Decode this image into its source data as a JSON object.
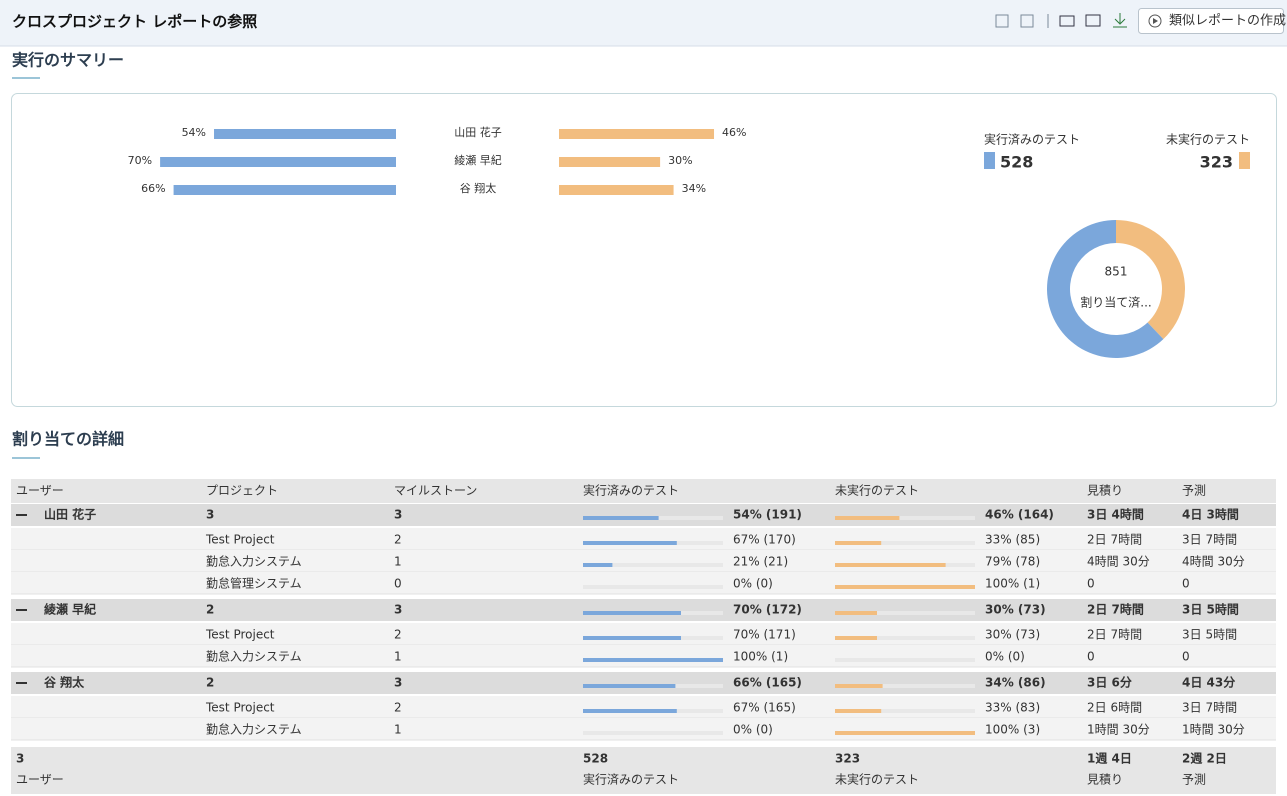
{
  "header": {
    "title": "クロスプロジェクト レポートの参照",
    "button": "類似レポートの作成"
  },
  "summary": {
    "title": "実行のサマリー",
    "users": [
      "山田 花子",
      "綾瀬 早紀",
      "谷 翔太"
    ],
    "executed": {
      "values": [
        54,
        70,
        66
      ],
      "value_labels": [
        "54%",
        "70%",
        "66%"
      ],
      "color": "#7ba7db"
    },
    "unexecuted": {
      "values": [
        46,
        30,
        34
      ],
      "value_labels": [
        "46%",
        "30%",
        "34%"
      ],
      "color": "#f2bd7f"
    },
    "legend": [
      {
        "name": "実行済みのテスト",
        "value": 528,
        "color": "#7ba7db"
      },
      {
        "name": "未実行のテスト",
        "value": 323,
        "color": "#f2bd7f"
      }
    ],
    "donut": {
      "total": 851,
      "label": "割り当て済..."
    }
  },
  "details": {
    "title": "割り当ての詳細",
    "columns": [
      "ユーザー",
      "プロジェクト",
      "マイルストーン",
      "実行済みのテスト",
      "未実行のテスト",
      "見積り",
      "予測"
    ],
    "groups": [
      {
        "user": "山田 花子",
        "projects": 3,
        "milestones": 3,
        "executed": {
          "label": "54% (191)",
          "value": 54
        },
        "unexecuted": {
          "label": "46% (164)",
          "value": 46
        },
        "estimate": "3日 4時間",
        "forecast": "4日 3時間",
        "rows": [
          {
            "project": "Test Project",
            "milestones": 2,
            "executed": {
              "label": "67% (170)",
              "value": 67
            },
            "unexecuted": {
              "label": "33% (85)",
              "value": 33
            },
            "estimate": "2日 7時間",
            "forecast": "3日 7時間"
          },
          {
            "project": "勤怠入力システム",
            "milestones": 1,
            "executed": {
              "label": "21% (21)",
              "value": 21
            },
            "unexecuted": {
              "label": "79% (78)",
              "value": 79
            },
            "estimate": "4時間 30分",
            "forecast": "4時間 30分"
          },
          {
            "project": "勤怠管理システム",
            "milestones": 0,
            "executed": {
              "label": "0% (0)",
              "value": 0
            },
            "unexecuted": {
              "label": "100% (1)",
              "value": 100
            },
            "estimate": "0",
            "forecast": "0"
          }
        ]
      },
      {
        "user": "綾瀬 早紀",
        "projects": 2,
        "milestones": 3,
        "executed": {
          "label": "70% (172)",
          "value": 70
        },
        "unexecuted": {
          "label": "30% (73)",
          "value": 30
        },
        "estimate": "2日 7時間",
        "forecast": "3日 5時間",
        "rows": [
          {
            "project": "Test Project",
            "milestones": 2,
            "executed": {
              "label": "70% (171)",
              "value": 70
            },
            "unexecuted": {
              "label": "30% (73)",
              "value": 30
            },
            "estimate": "2日 7時間",
            "forecast": "3日 5時間"
          },
          {
            "project": "勤怠入力システム",
            "milestones": 1,
            "executed": {
              "label": "100% (1)",
              "value": 100
            },
            "unexecuted": {
              "label": "0% (0)",
              "value": 0
            },
            "estimate": "0",
            "forecast": "0"
          }
        ]
      },
      {
        "user": "谷 翔太",
        "projects": 2,
        "milestones": 3,
        "executed": {
          "label": "66% (165)",
          "value": 66
        },
        "unexecuted": {
          "label": "34% (86)",
          "value": 34
        },
        "estimate": "3日 6分",
        "forecast": "4日 43分",
        "rows": [
          {
            "project": "Test Project",
            "milestones": 2,
            "executed": {
              "label": "67% (165)",
              "value": 67
            },
            "unexecuted": {
              "label": "33% (83)",
              "value": 33
            },
            "estimate": "2日 6時間",
            "forecast": "3日 7時間"
          },
          {
            "project": "勤怠入力システム",
            "milestones": 1,
            "executed": {
              "label": "0% (0)",
              "value": 0
            },
            "unexecuted": {
              "label": "100% (3)",
              "value": 100
            },
            "estimate": "1時間 30分",
            "forecast": "1時間 30分"
          }
        ]
      }
    ],
    "footer": {
      "users": 3,
      "executed": 528,
      "unexecuted": 323,
      "estimate": "1週 4日",
      "forecast": "2週 2日",
      "labels": [
        "ユーザー",
        "実行済みのテスト",
        "未実行のテスト",
        "見積り",
        "予測"
      ]
    }
  }
}
